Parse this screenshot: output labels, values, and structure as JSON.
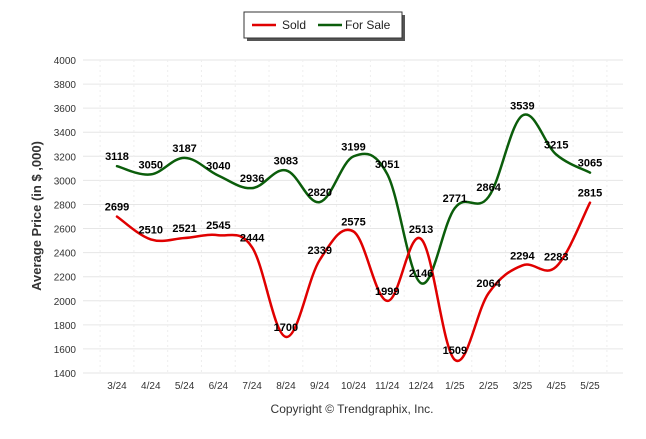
{
  "chart_data": {
    "type": "line",
    "categories": [
      "3/24",
      "4/24",
      "5/24",
      "6/24",
      "7/24",
      "8/24",
      "9/24",
      "10/24",
      "11/24",
      "12/24",
      "1/25",
      "2/25",
      "3/25",
      "4/25",
      "5/25"
    ],
    "series": [
      {
        "name": "Sold",
        "color": "#e00000",
        "values": [
          2699,
          2510,
          2521,
          2545,
          2444,
          1700,
          2339,
          2575,
          1999,
          2513,
          1509,
          2064,
          2294,
          2283,
          2815
        ]
      },
      {
        "name": "For Sale",
        "color": "#0b5d0b",
        "values": [
          3118,
          3050,
          3187,
          3040,
          2936,
          3083,
          2820,
          3199,
          3051,
          2146,
          2771,
          2864,
          3539,
          3215,
          3065
        ]
      }
    ],
    "yticks": [
      "4000",
      "3800",
      "3600",
      "3400",
      "3200",
      "3000",
      "2800",
      "2600",
      "2400",
      "2200",
      "2000",
      "1800",
      "1600",
      "1400"
    ],
    "ylim": [
      1400,
      4000
    ],
    "ylabel": "Average Price (in $ ,000)",
    "xlabel": "",
    "footer": "Copyright © Trendgraphix, Inc.",
    "grid": true,
    "legend_position": "top-center"
  }
}
